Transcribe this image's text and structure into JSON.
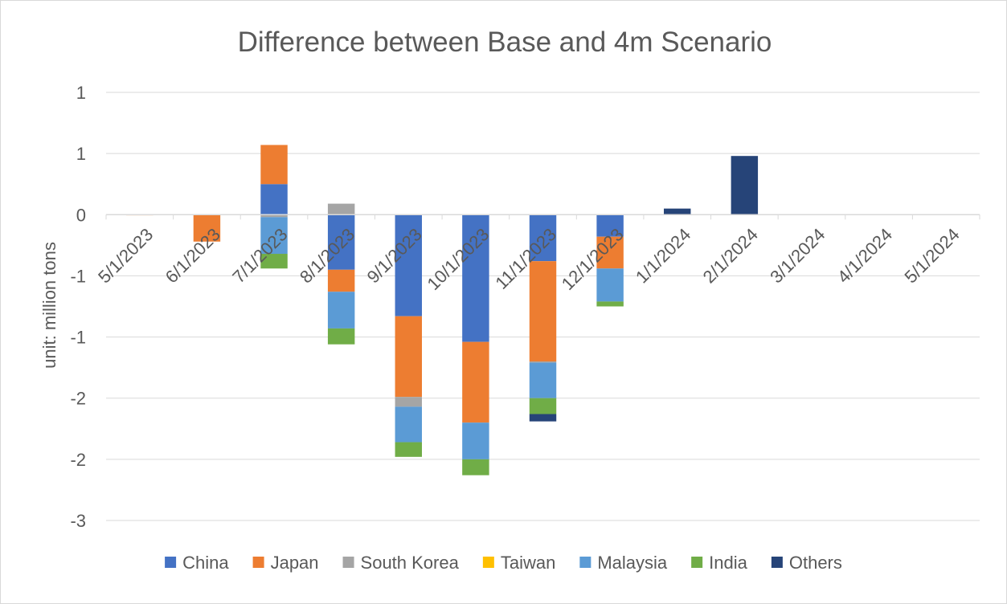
{
  "chart_data": {
    "type": "bar",
    "stacked": true,
    "title": "Difference between Base and 4m Scenario",
    "xlabel": "",
    "ylabel": "unit: million tons",
    "categories": [
      "5/1/2023",
      "6/1/2023",
      "7/1/2023",
      "8/1/2023",
      "9/1/2023",
      "10/1/2023",
      "11/1/2023",
      "12/1/2023",
      "1/1/2024",
      "2/1/2024",
      "3/1/2024",
      "4/1/2024",
      "5/1/2024"
    ],
    "ylim": [
      -2.5,
      1.0
    ],
    "y_ticks": [
      {
        "value": 1.0,
        "label": "1"
      },
      {
        "value": 0.5,
        "label": "1"
      },
      {
        "value": 0.0,
        "label": "0"
      },
      {
        "value": -0.5,
        "label": "-1"
      },
      {
        "value": -1.0,
        "label": "-1"
      },
      {
        "value": -1.5,
        "label": "-2"
      },
      {
        "value": -2.0,
        "label": "-2"
      },
      {
        "value": -2.5,
        "label": "-3"
      }
    ],
    "grid": true,
    "legend_position": "bottom",
    "series": [
      {
        "name": "China",
        "color": "#4472C4",
        "values": [
          0,
          0,
          0.25,
          -0.45,
          -0.83,
          -1.04,
          -0.38,
          -0.18,
          0,
          0,
          0,
          0,
          0
        ]
      },
      {
        "name": "Japan",
        "color": "#ED7D31",
        "values": [
          -0.005,
          -0.22,
          0.32,
          -0.18,
          -0.66,
          -0.66,
          -0.82,
          -0.26,
          0,
          0,
          0,
          0,
          0
        ]
      },
      {
        "name": "South Korea",
        "color": "#A5A5A5",
        "values": [
          0,
          0,
          -0.02,
          0.09,
          -0.08,
          0,
          -0.01,
          0,
          0,
          0,
          0,
          0,
          0
        ]
      },
      {
        "name": "Taiwan",
        "color": "#FFC000",
        "values": [
          0,
          0,
          0,
          0,
          0,
          0,
          0,
          0,
          0,
          0,
          0,
          0,
          0
        ]
      },
      {
        "name": "Malaysia",
        "color": "#5B9BD5",
        "values": [
          0,
          0,
          -0.3,
          -0.3,
          -0.29,
          -0.3,
          -0.29,
          -0.27,
          0,
          0,
          0,
          0,
          0
        ]
      },
      {
        "name": "India",
        "color": "#70AD47",
        "values": [
          0,
          0,
          -0.12,
          -0.13,
          -0.12,
          -0.13,
          -0.13,
          -0.04,
          0,
          0,
          0,
          0,
          0
        ]
      },
      {
        "name": "Others",
        "color": "#264478",
        "values": [
          0,
          0,
          0,
          0,
          0,
          0,
          -0.06,
          0,
          0.05,
          0.48,
          0,
          0,
          0
        ]
      }
    ]
  }
}
